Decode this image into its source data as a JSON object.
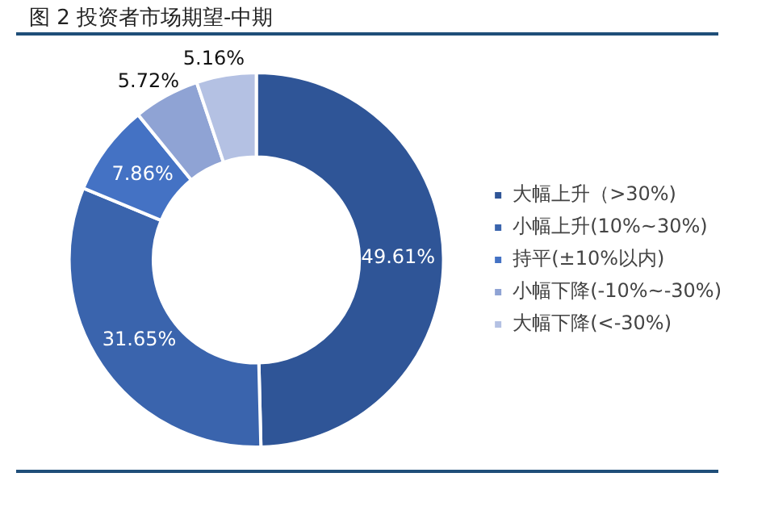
{
  "chart_data": {
    "type": "donut",
    "title": "图 2 投资者市场期望-中期",
    "categories": [
      "大幅上升（>30%)",
      "小幅上升(10%~30%)",
      "持平(±10%以内)",
      "小幅下降(-10%~-30%)",
      "大幅下降(<-30%)"
    ],
    "values": [
      49.61,
      31.65,
      7.86,
      5.72,
      5.16
    ],
    "colors": [
      "#2f5597",
      "#3a64ad",
      "#4472c4",
      "#8fa3d4",
      "#b4c1e3"
    ],
    "value_labels": [
      "49.61%",
      "31.65%",
      "7.86%",
      "5.72%",
      "5.16%"
    ],
    "legend": "right"
  }
}
